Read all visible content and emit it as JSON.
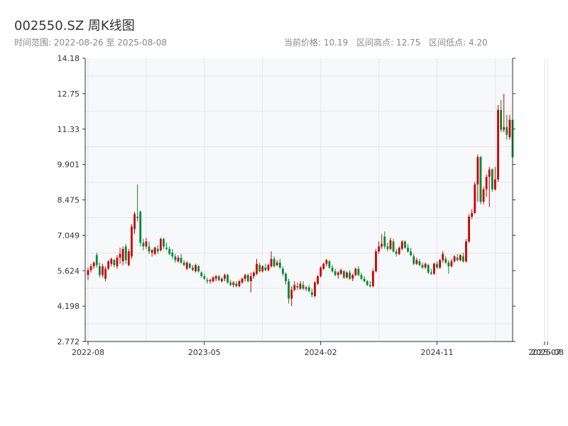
{
  "header": {
    "title": "002550.SZ 周K线图",
    "range_label": "时间范围:",
    "range_start": "2022-08-26",
    "range_sep": "至",
    "range_end": "2025-08-08",
    "stats": [
      {
        "label": "当前价格:",
        "value": "10.19"
      },
      {
        "label": "区间高点:",
        "value": "12.75"
      },
      {
        "label": "区间低点:",
        "value": "4.20"
      }
    ]
  },
  "chart_data": {
    "type": "candlestick",
    "title": "002550.SZ 周K线图",
    "ylim": [
      2.772,
      14.18
    ],
    "y_ticks": [
      2.772,
      4.198,
      5.624,
      7.049,
      8.475,
      9.901,
      11.33,
      12.75,
      14.18
    ],
    "y_tick_labels": [
      "2.772",
      "4.198",
      "5.624",
      "7.049",
      "8.475",
      "9.901",
      "11.33",
      "12.75",
      "14.18"
    ],
    "x_ticks": [
      {
        "label": "2022-08",
        "index": 0
      },
      {
        "label": "2023-05",
        "index": 40
      },
      {
        "label": "2024-02",
        "index": 80
      },
      {
        "label": "2024-11",
        "index": 120
      },
      {
        "label": "2025-07",
        "index": 157
      },
      {
        "label": "2025-08",
        "index": 158
      }
    ],
    "colors": {
      "up": "#cc0000",
      "down": "#008833",
      "grid": "#e5e7eb",
      "axis": "#333333",
      "plot_bg": "#f7f8fa"
    },
    "grid": true,
    "candles": [
      {
        "o": 5.45,
        "h": 5.75,
        "l": 5.25,
        "c": 5.65
      },
      {
        "o": 5.65,
        "h": 5.9,
        "l": 5.55,
        "c": 5.8
      },
      {
        "o": 5.8,
        "h": 6.0,
        "l": 5.7,
        "c": 5.95
      },
      {
        "o": 6.25,
        "h": 6.35,
        "l": 5.75,
        "c": 5.85
      },
      {
        "o": 5.8,
        "h": 5.95,
        "l": 5.35,
        "c": 5.45
      },
      {
        "o": 5.45,
        "h": 5.9,
        "l": 5.35,
        "c": 5.8
      },
      {
        "o": 5.3,
        "h": 5.8,
        "l": 5.2,
        "c": 5.7
      },
      {
        "o": 5.7,
        "h": 6.05,
        "l": 5.65,
        "c": 6.0
      },
      {
        "o": 5.9,
        "h": 6.15,
        "l": 5.8,
        "c": 6.1
      },
      {
        "o": 6.05,
        "h": 6.1,
        "l": 5.75,
        "c": 5.85
      },
      {
        "o": 5.8,
        "h": 6.25,
        "l": 5.7,
        "c": 6.15
      },
      {
        "o": 6.15,
        "h": 6.55,
        "l": 5.9,
        "c": 6.3
      },
      {
        "o": 6.0,
        "h": 6.6,
        "l": 5.85,
        "c": 6.5
      },
      {
        "o": 6.6,
        "h": 6.7,
        "l": 5.9,
        "c": 6.05
      },
      {
        "o": 5.85,
        "h": 6.5,
        "l": 5.8,
        "c": 6.4
      },
      {
        "o": 6.2,
        "h": 7.5,
        "l": 6.1,
        "c": 7.4
      },
      {
        "o": 7.3,
        "h": 8.0,
        "l": 7.1,
        "c": 7.9
      },
      {
        "o": 7.8,
        "h": 9.1,
        "l": 7.6,
        "c": 7.75
      },
      {
        "o": 8.0,
        "h": 8.05,
        "l": 6.6,
        "c": 6.75
      },
      {
        "o": 6.75,
        "h": 6.9,
        "l": 6.45,
        "c": 6.6
      },
      {
        "o": 6.6,
        "h": 6.95,
        "l": 6.5,
        "c": 6.8
      },
      {
        "o": 6.6,
        "h": 6.8,
        "l": 6.3,
        "c": 6.4
      },
      {
        "o": 6.35,
        "h": 6.5,
        "l": 6.2,
        "c": 6.45
      },
      {
        "o": 6.3,
        "h": 6.6,
        "l": 6.25,
        "c": 6.55
      },
      {
        "o": 6.5,
        "h": 6.65,
        "l": 6.3,
        "c": 6.4
      },
      {
        "o": 6.45,
        "h": 6.95,
        "l": 6.4,
        "c": 6.9
      },
      {
        "o": 6.9,
        "h": 6.95,
        "l": 6.5,
        "c": 6.6
      },
      {
        "o": 6.55,
        "h": 6.75,
        "l": 6.45,
        "c": 6.5
      },
      {
        "o": 6.5,
        "h": 6.6,
        "l": 6.25,
        "c": 6.3
      },
      {
        "o": 6.35,
        "h": 6.5,
        "l": 6.1,
        "c": 6.2
      },
      {
        "o": 6.2,
        "h": 6.3,
        "l": 5.95,
        "c": 6.05
      },
      {
        "o": 6.0,
        "h": 6.25,
        "l": 5.95,
        "c": 6.15
      },
      {
        "o": 6.15,
        "h": 6.3,
        "l": 5.9,
        "c": 5.95
      },
      {
        "o": 5.95,
        "h": 6.05,
        "l": 5.8,
        "c": 5.85
      },
      {
        "o": 5.7,
        "h": 6.0,
        "l": 5.65,
        "c": 5.95
      },
      {
        "o": 5.9,
        "h": 5.95,
        "l": 5.7,
        "c": 5.75
      },
      {
        "o": 5.75,
        "h": 5.85,
        "l": 5.6,
        "c": 5.65
      },
      {
        "o": 5.6,
        "h": 5.9,
        "l": 5.55,
        "c": 5.85
      },
      {
        "o": 5.8,
        "h": 5.85,
        "l": 5.55,
        "c": 5.6
      },
      {
        "o": 5.55,
        "h": 5.6,
        "l": 5.35,
        "c": 5.4
      },
      {
        "o": 5.4,
        "h": 5.5,
        "l": 5.25,
        "c": 5.3
      },
      {
        "o": 5.25,
        "h": 5.35,
        "l": 5.1,
        "c": 5.2
      },
      {
        "o": 5.2,
        "h": 5.3,
        "l": 5.1,
        "c": 5.25
      },
      {
        "o": 5.2,
        "h": 5.4,
        "l": 5.15,
        "c": 5.35
      },
      {
        "o": 5.3,
        "h": 5.45,
        "l": 5.2,
        "c": 5.4
      },
      {
        "o": 5.4,
        "h": 5.45,
        "l": 5.2,
        "c": 5.25
      },
      {
        "o": 5.2,
        "h": 5.35,
        "l": 5.15,
        "c": 5.3
      },
      {
        "o": 5.3,
        "h": 5.5,
        "l": 5.2,
        "c": 5.45
      },
      {
        "o": 5.45,
        "h": 5.5,
        "l": 5.1,
        "c": 5.15
      },
      {
        "o": 5.15,
        "h": 5.25,
        "l": 5.0,
        "c": 5.05
      },
      {
        "o": 5.05,
        "h": 5.2,
        "l": 4.95,
        "c": 5.15
      },
      {
        "o": 5.1,
        "h": 5.2,
        "l": 4.95,
        "c": 5.0
      },
      {
        "o": 5.0,
        "h": 5.25,
        "l": 4.95,
        "c": 5.2
      },
      {
        "o": 5.15,
        "h": 5.35,
        "l": 5.1,
        "c": 5.3
      },
      {
        "o": 5.3,
        "h": 5.5,
        "l": 5.2,
        "c": 5.45
      },
      {
        "o": 5.45,
        "h": 5.5,
        "l": 5.15,
        "c": 5.2
      },
      {
        "o": 5.2,
        "h": 5.55,
        "l": 4.75,
        "c": 5.4
      },
      {
        "o": 5.4,
        "h": 5.6,
        "l": 5.3,
        "c": 5.55
      },
      {
        "o": 5.5,
        "h": 6.1,
        "l": 5.45,
        "c": 5.9
      },
      {
        "o": 5.85,
        "h": 5.95,
        "l": 5.55,
        "c": 5.6
      },
      {
        "o": 5.6,
        "h": 5.85,
        "l": 5.55,
        "c": 5.8
      },
      {
        "o": 5.75,
        "h": 5.9,
        "l": 5.6,
        "c": 5.65
      },
      {
        "o": 5.65,
        "h": 5.9,
        "l": 5.6,
        "c": 5.85
      },
      {
        "o": 5.8,
        "h": 6.4,
        "l": 5.75,
        "c": 6.1
      },
      {
        "o": 6.1,
        "h": 6.2,
        "l": 5.75,
        "c": 5.8
      },
      {
        "o": 5.85,
        "h": 6.05,
        "l": 5.8,
        "c": 5.95
      },
      {
        "o": 5.95,
        "h": 6.1,
        "l": 5.7,
        "c": 5.75
      },
      {
        "o": 5.7,
        "h": 5.8,
        "l": 5.4,
        "c": 5.5
      },
      {
        "o": 5.5,
        "h": 5.55,
        "l": 5.05,
        "c": 5.2
      },
      {
        "o": 5.2,
        "h": 5.3,
        "l": 4.3,
        "c": 4.5
      },
      {
        "o": 4.5,
        "h": 5.0,
        "l": 4.2,
        "c": 4.85
      },
      {
        "o": 4.85,
        "h": 5.2,
        "l": 4.8,
        "c": 5.05
      },
      {
        "o": 5.0,
        "h": 5.15,
        "l": 4.85,
        "c": 4.95
      },
      {
        "o": 4.9,
        "h": 5.2,
        "l": 4.85,
        "c": 5.1
      },
      {
        "o": 5.05,
        "h": 5.2,
        "l": 4.85,
        "c": 4.9
      },
      {
        "o": 4.9,
        "h": 5.0,
        "l": 4.8,
        "c": 4.95
      },
      {
        "o": 4.95,
        "h": 5.05,
        "l": 4.75,
        "c": 4.8
      },
      {
        "o": 4.75,
        "h": 4.9,
        "l": 4.55,
        "c": 4.65
      },
      {
        "o": 4.6,
        "h": 5.2,
        "l": 4.55,
        "c": 5.15
      },
      {
        "o": 5.1,
        "h": 5.45,
        "l": 5.05,
        "c": 5.4
      },
      {
        "o": 5.4,
        "h": 5.8,
        "l": 5.35,
        "c": 5.75
      },
      {
        "o": 5.7,
        "h": 5.95,
        "l": 5.65,
        "c": 5.9
      },
      {
        "o": 5.9,
        "h": 6.1,
        "l": 5.8,
        "c": 6.05
      },
      {
        "o": 6.0,
        "h": 6.05,
        "l": 5.7,
        "c": 5.75
      },
      {
        "o": 5.75,
        "h": 5.85,
        "l": 5.55,
        "c": 5.6
      },
      {
        "o": 5.6,
        "h": 5.7,
        "l": 5.4,
        "c": 5.45
      },
      {
        "o": 5.45,
        "h": 5.6,
        "l": 5.3,
        "c": 5.55
      },
      {
        "o": 5.5,
        "h": 5.7,
        "l": 5.45,
        "c": 5.65
      },
      {
        "o": 5.6,
        "h": 5.65,
        "l": 5.3,
        "c": 5.35
      },
      {
        "o": 5.35,
        "h": 5.6,
        "l": 5.3,
        "c": 5.55
      },
      {
        "o": 5.55,
        "h": 5.65,
        "l": 5.25,
        "c": 5.3
      },
      {
        "o": 5.3,
        "h": 5.5,
        "l": 5.2,
        "c": 5.45
      },
      {
        "o": 5.45,
        "h": 5.75,
        "l": 5.4,
        "c": 5.7
      },
      {
        "o": 5.7,
        "h": 5.8,
        "l": 5.4,
        "c": 5.45
      },
      {
        "o": 5.45,
        "h": 5.55,
        "l": 5.25,
        "c": 5.3
      },
      {
        "o": 5.3,
        "h": 5.4,
        "l": 5.15,
        "c": 5.2
      },
      {
        "o": 5.2,
        "h": 5.25,
        "l": 5.0,
        "c": 5.05
      },
      {
        "o": 5.05,
        "h": 5.2,
        "l": 4.95,
        "c": 5.0
      },
      {
        "o": 5.0,
        "h": 5.7,
        "l": 4.95,
        "c": 5.6
      },
      {
        "o": 5.6,
        "h": 6.5,
        "l": 5.55,
        "c": 6.4
      },
      {
        "o": 6.4,
        "h": 6.8,
        "l": 6.3,
        "c": 6.6
      },
      {
        "o": 6.6,
        "h": 7.1,
        "l": 6.5,
        "c": 6.7
      },
      {
        "o": 7.0,
        "h": 7.2,
        "l": 6.5,
        "c": 6.6
      },
      {
        "o": 6.6,
        "h": 6.75,
        "l": 6.4,
        "c": 6.5
      },
      {
        "o": 6.5,
        "h": 6.95,
        "l": 6.45,
        "c": 6.85
      },
      {
        "o": 6.8,
        "h": 6.9,
        "l": 6.35,
        "c": 6.4
      },
      {
        "o": 6.4,
        "h": 6.5,
        "l": 6.2,
        "c": 6.3
      },
      {
        "o": 6.3,
        "h": 6.6,
        "l": 6.25,
        "c": 6.55
      },
      {
        "o": 6.5,
        "h": 6.85,
        "l": 6.45,
        "c": 6.8
      },
      {
        "o": 6.8,
        "h": 6.85,
        "l": 6.5,
        "c": 6.55
      },
      {
        "o": 6.55,
        "h": 6.7,
        "l": 6.35,
        "c": 6.4
      },
      {
        "o": 6.4,
        "h": 6.55,
        "l": 6.2,
        "c": 6.25
      },
      {
        "o": 6.2,
        "h": 6.3,
        "l": 5.85,
        "c": 5.9
      },
      {
        "o": 5.9,
        "h": 6.15,
        "l": 5.85,
        "c": 6.05
      },
      {
        "o": 6.0,
        "h": 6.1,
        "l": 5.8,
        "c": 5.85
      },
      {
        "o": 5.85,
        "h": 5.95,
        "l": 5.7,
        "c": 5.75
      },
      {
        "o": 5.75,
        "h": 5.95,
        "l": 5.7,
        "c": 5.9
      },
      {
        "o": 5.85,
        "h": 5.9,
        "l": 5.5,
        "c": 5.55
      },
      {
        "o": 5.55,
        "h": 5.7,
        "l": 5.45,
        "c": 5.5
      },
      {
        "o": 5.5,
        "h": 5.95,
        "l": 5.45,
        "c": 5.9
      },
      {
        "o": 5.9,
        "h": 6.0,
        "l": 5.7,
        "c": 5.75
      },
      {
        "o": 5.75,
        "h": 6.1,
        "l": 5.7,
        "c": 6.05
      },
      {
        "o": 6.05,
        "h": 6.4,
        "l": 5.95,
        "c": 6.3
      },
      {
        "o": 6.1,
        "h": 6.2,
        "l": 5.9,
        "c": 5.95
      },
      {
        "o": 5.95,
        "h": 6.05,
        "l": 5.5,
        "c": 5.8
      },
      {
        "o": 5.8,
        "h": 6.1,
        "l": 5.75,
        "c": 6.0
      },
      {
        "o": 6.0,
        "h": 6.25,
        "l": 5.95,
        "c": 6.2
      },
      {
        "o": 6.15,
        "h": 6.3,
        "l": 6.0,
        "c": 6.05
      },
      {
        "o": 6.05,
        "h": 6.3,
        "l": 6.0,
        "c": 6.25
      },
      {
        "o": 6.2,
        "h": 6.35,
        "l": 5.95,
        "c": 6.0
      },
      {
        "o": 6.0,
        "h": 6.9,
        "l": 5.95,
        "c": 6.8
      },
      {
        "o": 6.8,
        "h": 7.9,
        "l": 6.75,
        "c": 7.8
      },
      {
        "o": 7.8,
        "h": 8.1,
        "l": 7.7,
        "c": 7.95
      },
      {
        "o": 7.95,
        "h": 9.2,
        "l": 7.9,
        "c": 9.1
      },
      {
        "o": 9.1,
        "h": 10.3,
        "l": 8.4,
        "c": 10.2
      },
      {
        "o": 10.2,
        "h": 10.25,
        "l": 8.3,
        "c": 8.4
      },
      {
        "o": 8.4,
        "h": 9.0,
        "l": 8.3,
        "c": 8.9
      },
      {
        "o": 8.9,
        "h": 9.5,
        "l": 8.6,
        "c": 9.4
      },
      {
        "o": 9.4,
        "h": 9.8,
        "l": 8.2,
        "c": 9.7
      },
      {
        "o": 9.7,
        "h": 9.75,
        "l": 8.8,
        "c": 8.9
      },
      {
        "o": 8.9,
        "h": 9.8,
        "l": 8.85,
        "c": 9.3
      },
      {
        "o": 9.3,
        "h": 12.3,
        "l": 9.2,
        "c": 12.1
      },
      {
        "o": 12.1,
        "h": 12.5,
        "l": 11.2,
        "c": 11.3
      },
      {
        "o": 11.3,
        "h": 12.75,
        "l": 11.2,
        "c": 11.4
      },
      {
        "o": 11.4,
        "h": 11.9,
        "l": 10.9,
        "c": 11.1
      },
      {
        "o": 11.0,
        "h": 11.9,
        "l": 10.9,
        "c": 11.7
      },
      {
        "o": 11.7,
        "h": 12.05,
        "l": 10.1,
        "c": 10.19
      }
    ]
  }
}
